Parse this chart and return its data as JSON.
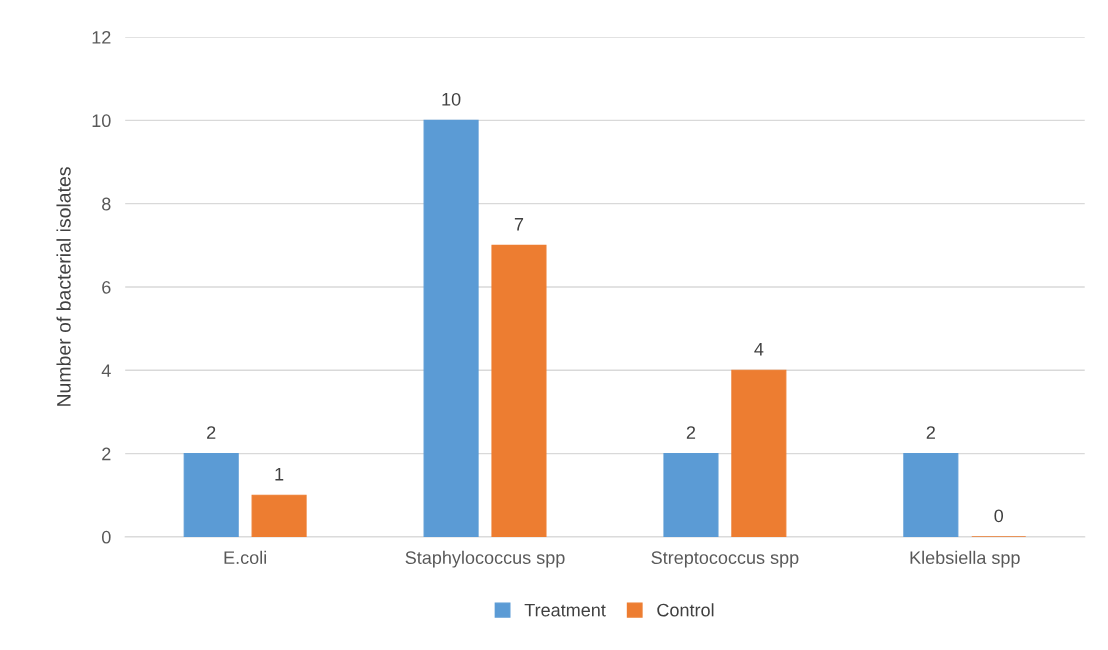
{
  "chart_data": {
    "type": "bar",
    "ylabel": "Number of bacterial isolates",
    "categories": [
      "E.coli",
      "Staphylococcus spp",
      "Streptococcus spp",
      "Klebsiella spp"
    ],
    "series": [
      {
        "name": "Treatment",
        "color": "#5b9bd5",
        "values": [
          2,
          10,
          2,
          2
        ]
      },
      {
        "name": "Control",
        "color": "#ed7d31",
        "values": [
          1,
          7,
          4,
          0
        ]
      }
    ],
    "ylim": [
      0,
      12
    ],
    "yticks": [
      0,
      2,
      4,
      6,
      8,
      10,
      12
    ],
    "grid": "y",
    "legend": "bottom",
    "data_labels": true
  }
}
